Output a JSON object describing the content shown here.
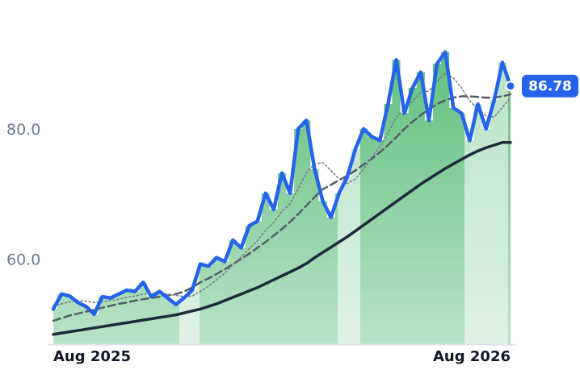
{
  "chart_data": {
    "type": "line",
    "categories": [
      "Aug 2025",
      null,
      null,
      null,
      null,
      null,
      null,
      null,
      null,
      null,
      null,
      null,
      null,
      null,
      null,
      null,
      null,
      null,
      null,
      null,
      null,
      null,
      null,
      null,
      null,
      null,
      null,
      null,
      null,
      null,
      null,
      null,
      null,
      null,
      null,
      null,
      null,
      null,
      null,
      null,
      null,
      null,
      null,
      null,
      null,
      null,
      null,
      null,
      null,
      null,
      null,
      null,
      null,
      null,
      null,
      null,
      "Aug 2026"
    ],
    "ylim": [
      47.1,
      100
    ],
    "yticks": [
      {
        "value": 60,
        "label": "60.0"
      },
      {
        "value": 80,
        "label": "80.0"
      }
    ],
    "series": [
      {
        "color": "#1e293b",
        "style": "solid",
        "values": [
          48.6,
          48.8,
          49.0,
          49.2,
          49.4,
          49.6,
          49.8,
          50.0,
          50.2,
          50.4,
          50.6,
          50.8,
          51.0,
          51.2,
          51.4,
          51.6,
          51.9,
          52.2,
          52.5,
          52.9,
          53.3,
          53.8,
          54.3,
          54.8,
          55.3,
          55.8,
          56.4,
          57.0,
          57.6,
          58.2,
          58.8,
          59.5,
          60.4,
          61.2,
          62.0,
          62.8,
          63.6,
          64.5,
          65.4,
          66.3,
          67.2,
          68.1,
          69.0,
          69.9,
          70.8,
          71.7,
          72.5,
          73.3,
          74.1,
          74.8,
          75.5,
          76.2,
          76.8,
          77.3,
          77.7,
          78.1,
          78.1
        ]
      },
      {
        "color": "#555b66",
        "style": "dashed",
        "values": [
          50.7,
          51.1,
          51.5,
          51.8,
          52.1,
          52.4,
          52.7,
          53.0,
          53.3,
          53.5,
          53.8,
          54.0,
          54.2,
          54.4,
          54.6,
          54.8,
          55.2,
          55.8,
          56.6,
          57.2,
          57.9,
          58.6,
          59.4,
          60.2,
          61.0,
          61.9,
          62.8,
          63.8,
          64.8,
          65.9,
          67.1,
          68.4,
          69.7,
          70.9,
          71.6,
          72.3,
          73.0,
          73.8,
          74.7,
          75.6,
          76.6,
          77.7,
          78.9,
          80.2,
          81.3,
          82.3,
          83.2,
          84.0,
          84.6,
          85.0,
          85.2,
          85.2,
          85.1,
          85.0,
          85.0,
          85.2,
          85.5
        ]
      },
      {
        "color": "#7a808a",
        "style": "dotted",
        "values": [
          53.0,
          53.3,
          53.6,
          53.8,
          53.7,
          53.5,
          53.6,
          53.8,
          54.0,
          54.3,
          54.5,
          54.8,
          54.9,
          55.0,
          54.8,
          54.6,
          54.4,
          54.5,
          55.2,
          56.0,
          57.0,
          58.0,
          59.3,
          60.5,
          61.8,
          63.0,
          64.6,
          65.8,
          67.5,
          68.7,
          71.0,
          73.5,
          74.8,
          75.0,
          73.8,
          72.5,
          71.8,
          72.5,
          74.0,
          75.8,
          77.5,
          79.5,
          82.0,
          83.3,
          84.5,
          85.8,
          86.0,
          87.5,
          88.8,
          88.0,
          86.5,
          84.5,
          83.3,
          82.2,
          82.0,
          83.5,
          85.0
        ]
      },
      {
        "color": "#2563eb",
        "style": "solid",
        "fill_under": true,
        "last_label": "86.78",
        "values": [
          52.5,
          54.8,
          54.5,
          53.5,
          52.9,
          51.7,
          54.4,
          54.2,
          54.8,
          55.4,
          55.2,
          56.6,
          54.4,
          55.2,
          54.2,
          53.2,
          54.2,
          55.4,
          59.4,
          59.1,
          60.4,
          59.8,
          63.1,
          61.9,
          65.3,
          66.0,
          70.3,
          67.8,
          73.4,
          70.3,
          80.2,
          81.5,
          74.0,
          69.1,
          66.6,
          70.3,
          72.8,
          77.1,
          80.2,
          79.0,
          78.4,
          84.0,
          90.8,
          82.6,
          86.5,
          88.9,
          81.5,
          90.2,
          92.0,
          83.4,
          82.6,
          78.4,
          84.0,
          80.2,
          84.6,
          90.4,
          86.78
        ]
      }
    ]
  }
}
